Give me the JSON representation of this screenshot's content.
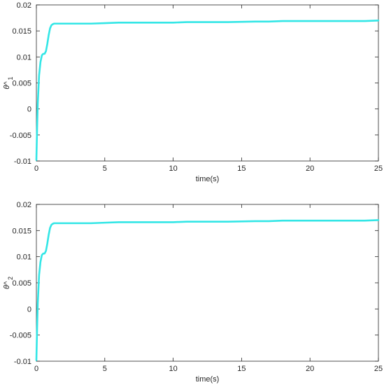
{
  "chart_data": [
    {
      "type": "line",
      "xlabel": "time(s)",
      "ylabel": "θ^",
      "ylabel_sub": "1",
      "xlim": [
        0,
        25
      ],
      "ylim": [
        -0.01,
        0.02
      ],
      "xticks": [
        0,
        5,
        10,
        15,
        20,
        25
      ],
      "yticks": [
        -0.01,
        -0.005,
        0,
        0.005,
        0.01,
        0.015,
        0.02
      ],
      "xtick_labels": [
        "0",
        "5",
        "10",
        "15",
        "20",
        "25"
      ],
      "ytick_labels": [
        "-0.01",
        "-0.005",
        "0",
        "0.005",
        "0.01",
        "0.015",
        "0.02"
      ],
      "grid": false,
      "series": [
        {
          "color": "#33e6e6",
          "x": [
            0,
            0.05,
            0.1,
            0.2,
            0.3,
            0.4,
            0.5,
            0.6,
            0.7,
            0.8,
            0.9,
            1.0,
            1.1,
            1.2,
            1.3,
            1.5,
            2,
            3,
            4,
            5,
            6,
            8,
            10,
            11,
            12,
            14,
            16,
            17,
            18,
            20,
            22,
            24,
            25
          ],
          "y": [
            -0.0098,
            -0.004,
            0.001,
            0.0065,
            0.009,
            0.0103,
            0.0106,
            0.0106,
            0.0111,
            0.0125,
            0.0142,
            0.0155,
            0.0161,
            0.0163,
            0.0164,
            0.0164,
            0.0164,
            0.0164,
            0.0164,
            0.0165,
            0.0166,
            0.0166,
            0.0166,
            0.0167,
            0.0167,
            0.0167,
            0.0168,
            0.0168,
            0.0169,
            0.0169,
            0.0169,
            0.0169,
            0.017
          ]
        }
      ]
    },
    {
      "type": "line",
      "xlabel": "time(s)",
      "ylabel": "θ^",
      "ylabel_sub": "2",
      "xlim": [
        0,
        25
      ],
      "ylim": [
        -0.01,
        0.02
      ],
      "xticks": [
        0,
        5,
        10,
        15,
        20,
        25
      ],
      "yticks": [
        -0.01,
        -0.005,
        0,
        0.005,
        0.01,
        0.015,
        0.02
      ],
      "xtick_labels": [
        "0",
        "5",
        "10",
        "15",
        "20",
        "25"
      ],
      "ytick_labels": [
        "-0.01",
        "-0.005",
        "0",
        "0.005",
        "0.01",
        "0.015",
        "0.02"
      ],
      "grid": false,
      "series": [
        {
          "color": "#33e6e6",
          "x": [
            0,
            0.05,
            0.1,
            0.2,
            0.3,
            0.4,
            0.5,
            0.6,
            0.7,
            0.8,
            0.9,
            1.0,
            1.1,
            1.2,
            1.3,
            1.5,
            2,
            3,
            4,
            5,
            6,
            8,
            10,
            11,
            12,
            14,
            16,
            17,
            18,
            20,
            22,
            24,
            25
          ],
          "y": [
            -0.0098,
            -0.004,
            0.001,
            0.0065,
            0.009,
            0.0103,
            0.0106,
            0.0106,
            0.0111,
            0.0125,
            0.0142,
            0.0155,
            0.0161,
            0.0163,
            0.0164,
            0.0164,
            0.0164,
            0.0164,
            0.0164,
            0.0165,
            0.0166,
            0.0166,
            0.0166,
            0.0167,
            0.0167,
            0.0167,
            0.0168,
            0.0168,
            0.0169,
            0.0169,
            0.0169,
            0.0169,
            0.017
          ]
        }
      ]
    }
  ]
}
